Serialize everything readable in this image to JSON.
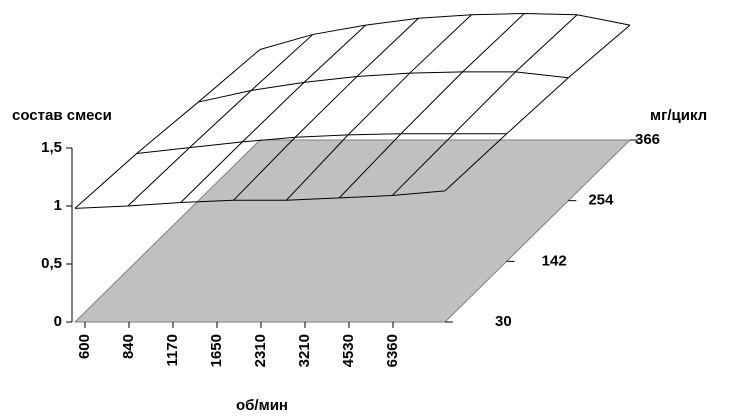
{
  "chart_data": {
    "type": "surface",
    "z_label": "состав смеси",
    "x_label": "об/мин",
    "y_label": "мг/цикл",
    "categories": [
      "600",
      "840",
      "1170",
      "1650",
      "2310",
      "3210",
      "4530",
      "6360"
    ],
    "y_categories": [
      "30",
      "142",
      "254",
      "366"
    ],
    "zlim": [
      0,
      1.5
    ],
    "zticks": [
      0,
      {
        "value": 0.5,
        "label": "0,5"
      },
      1,
      {
        "value": 1.5,
        "label": "1,5"
      }
    ],
    "values": [
      [
        0.98,
        1.0,
        1.03,
        1.05,
        1.05,
        1.07,
        1.09,
        1.13
      ],
      [
        0.93,
        0.98,
        1.03,
        1.07,
        1.09,
        1.1,
        1.1,
        1.1
      ],
      [
        0.85,
        0.95,
        1.02,
        1.07,
        1.1,
        1.11,
        1.11,
        1.06
      ],
      [
        0.78,
        0.91,
        0.99,
        1.05,
        1.08,
        1.09,
        1.08,
        0.99
      ]
    ],
    "floor_color": "#c0c0c0",
    "mesh_color": "#000000"
  }
}
